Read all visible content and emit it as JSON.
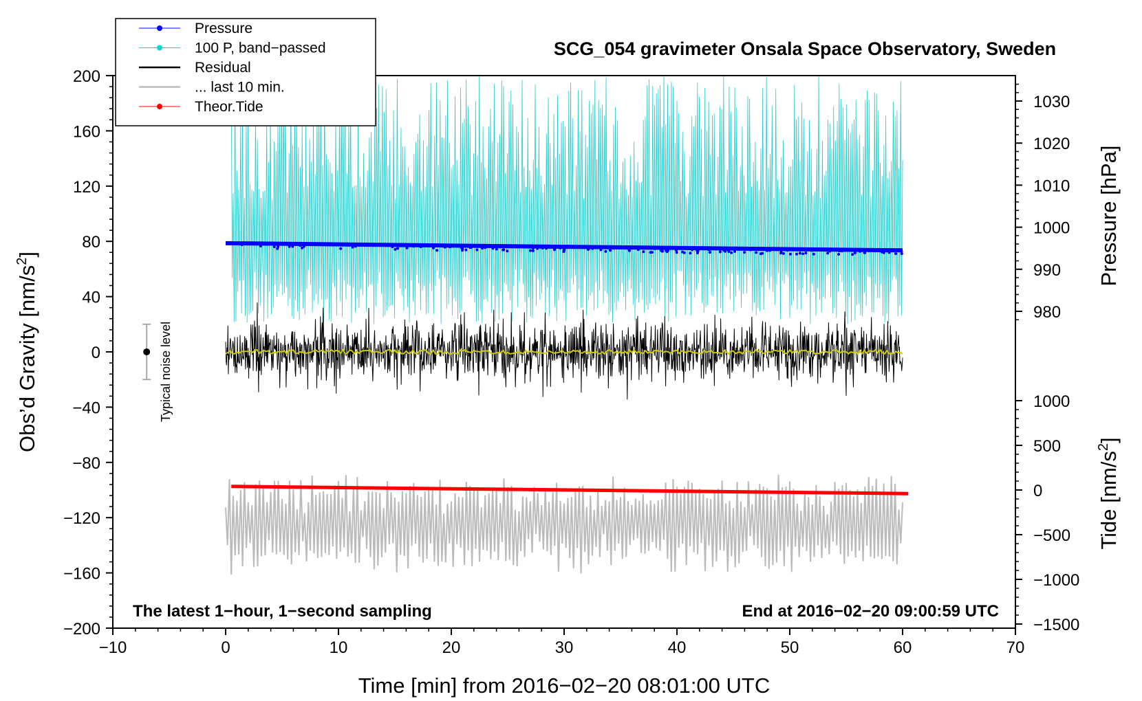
{
  "chart_data": {
    "type": "line",
    "title": "SCG_054 gravimeter Onsala Space Observatory, Sweden",
    "xlabel": "Time [min] from 2016−02−20 08:01:00 UTC",
    "ylabel_left": "Obs’d Gravity [nm/s",
    "ylabel_left_sup": "2",
    "ylabel_left_end": "]",
    "ylabel_right_pressure": "Pressure [hPa]",
    "ylabel_right_tide": "Tide [nm/s",
    "ylabel_right_tide_sup": "2",
    "ylabel_right_tide_end": "]",
    "xlim": [
      -10,
      70
    ],
    "ylim_left": [
      -200,
      200
    ],
    "pressure_range": [
      975,
      1035
    ],
    "tide_range": [
      -1500,
      1500
    ],
    "x_ticks": [
      "−10",
      "0",
      "10",
      "20",
      "30",
      "40",
      "50",
      "60",
      "70"
    ],
    "y_left_ticks": [
      "200",
      "160",
      "120",
      "80",
      "40",
      "0",
      "−40",
      "−80",
      "−120",
      "−160",
      "−200"
    ],
    "pressure_ticks": [
      "1030",
      "1020",
      "1010",
      "1000",
      "990",
      "980"
    ],
    "tide_ticks": [
      "1000",
      "500",
      "0",
      "−500",
      "−1000",
      "−1500"
    ],
    "legend": [
      {
        "label": "Pressure",
        "color": "#0000ff",
        "marker": true
      },
      {
        "label": "100 P, band−passed",
        "color": "#22cccc",
        "marker": true
      },
      {
        "label": "Residual",
        "color": "#000000",
        "marker": false
      },
      {
        "label": "... last 10 min.",
        "color": "#bbbbbb",
        "marker": false
      },
      {
        "label": "Theor.Tide",
        "color": "#ff0000",
        "marker": true
      }
    ],
    "annotation_left": "The latest 1−hour, 1−second sampling",
    "annotation_right": "End at 2016−02−20 09:00:59 UTC",
    "noise_label": "Typical noise level",
    "noise_bar": {
      "x": -7,
      "center": 0,
      "half_range": 20
    },
    "series": [
      {
        "name": "Pressure",
        "axis": "pressure",
        "color": "#0000ff",
        "x_start": 0,
        "x_end": 60,
        "start": 996.2,
        "end": 994.5
      },
      {
        "name": "100 P, band−passed",
        "axis": "left",
        "color": "#22cccc",
        "x_start": 0.5,
        "x_end": 60,
        "low": 20,
        "high": 200
      },
      {
        "name": "Residual",
        "axis": "left",
        "color": "#000000",
        "x_start": 0,
        "x_end": 60,
        "spread": 35
      },
      {
        "name": "Residual smoothed",
        "axis": "left",
        "color": "#cccc00",
        "x_start": 0,
        "x_end": 60,
        "value": 0
      },
      {
        "name": "... last 10 min.",
        "axis": "left",
        "color": "#bbbbbb",
        "x_start": 0,
        "x_end": 60,
        "center": -125,
        "spread": 45
      },
      {
        "name": "Theor.Tide",
        "axis": "tide",
        "color": "#ff0000",
        "x_start": 0.5,
        "x_end": 60.5,
        "start": 40,
        "end": -40
      }
    ]
  }
}
